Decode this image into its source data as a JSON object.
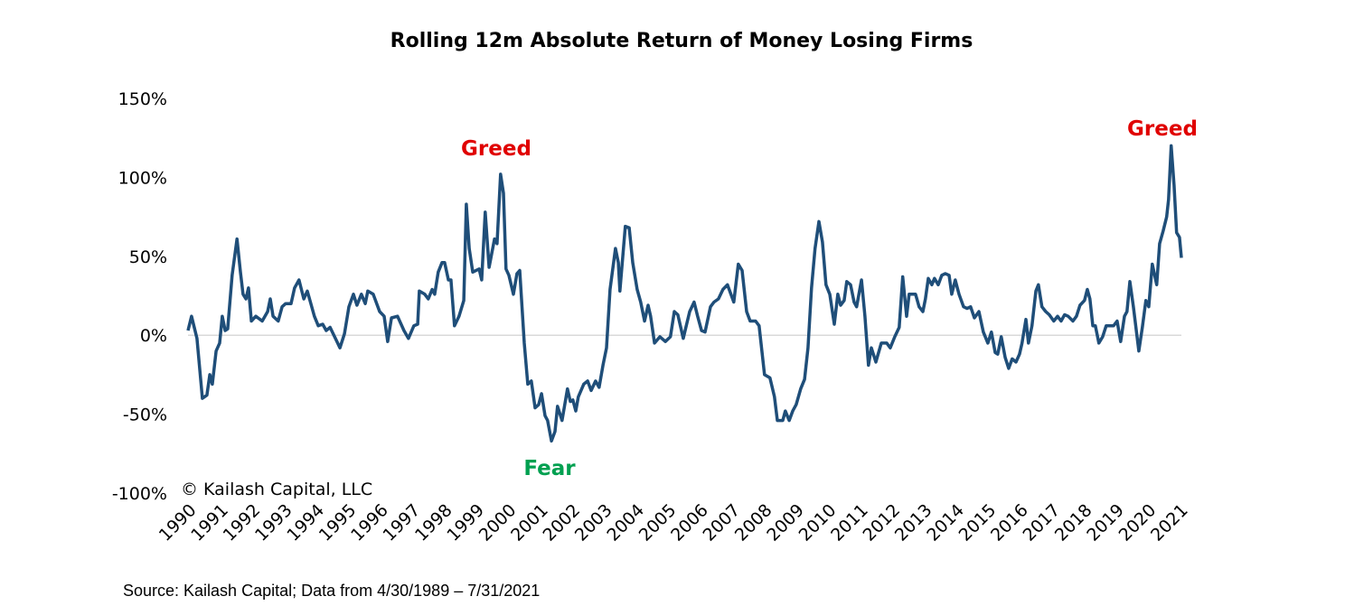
{
  "chart_data": {
    "type": "line",
    "title": "Rolling 12m Absolute Return of Money Losing Firms",
    "annotations": [
      "Greed",
      "Fear",
      "Greed",
      "© Kailash Capital, LLC"
    ],
    "source": "Source: Kailash Capital; Data from 4/30/1989 – 7/31/2021",
    "xlim": [
      1990,
      2021.05
    ],
    "xticks": [
      1990,
      1991,
      1992,
      1993,
      1994,
      1995,
      1996,
      1997,
      1998,
      1999,
      2000,
      2001,
      2002,
      2003,
      2004,
      2005,
      2006,
      2007,
      2008,
      2009,
      2010,
      2011,
      2012,
      2013,
      2014,
      2015,
      2016,
      2017,
      2018,
      2019,
      2020,
      2021
    ],
    "ylim": [
      -100,
      150
    ],
    "yticks": [
      {
        "value": -100,
        "label": "-100%"
      },
      {
        "value": -50,
        "label": "-50%"
      },
      {
        "value": 0,
        "label": "0%"
      },
      {
        "value": 50,
        "label": "50%"
      },
      {
        "value": 100,
        "label": "100%"
      },
      {
        "value": 150,
        "label": "150%"
      }
    ],
    "series": [
      {
        "color": "#1f4e79",
        "x": [
          1990.0,
          1990.11,
          1990.28,
          1990.45,
          1990.59,
          1990.68,
          1990.76,
          1990.88,
          1990.99,
          1991.07,
          1991.16,
          1991.24,
          1991.38,
          1991.53,
          1991.64,
          1991.72,
          1991.81,
          1991.89,
          1991.98,
          1992.12,
          1992.32,
          1992.49,
          1992.57,
          1992.66,
          1992.82,
          1992.94,
          1993.05,
          1993.22,
          1993.33,
          1993.47,
          1993.62,
          1993.73,
          1993.84,
          1993.95,
          1994.07,
          1994.21,
          1994.32,
          1994.44,
          1994.75,
          1994.89,
          1995.03,
          1995.17,
          1995.28,
          1995.42,
          1995.54,
          1995.62,
          1995.79,
          1995.99,
          1996.13,
          1996.24,
          1996.36,
          1996.55,
          1996.75,
          1996.89,
          1997.06,
          1997.18,
          1997.23,
          1997.4,
          1997.51,
          1997.63,
          1997.71,
          1997.82,
          1997.94,
          1998.02,
          1998.14,
          1998.22,
          1998.33,
          1998.47,
          1998.62,
          1998.7,
          1998.79,
          1998.9,
          1999.1,
          1999.18,
          1999.29,
          1999.41,
          1999.58,
          1999.66,
          1999.77,
          1999.86,
          1999.94,
          2000.03,
          2000.17,
          2000.28,
          2000.37,
          2000.51,
          2000.62,
          2000.73,
          2000.85,
          2000.96,
          2001.05,
          2001.16,
          2001.24,
          2001.36,
          2001.47,
          2001.55,
          2001.69,
          2001.86,
          2001.95,
          2002.03,
          2002.12,
          2002.2,
          2002.37,
          2002.49,
          2002.6,
          2002.74,
          2002.85,
          2002.97,
          2003.08,
          2003.19,
          2003.36,
          2003.45,
          2003.5,
          2003.67,
          2003.79,
          2003.9,
          2004.04,
          2004.15,
          2004.27,
          2004.38,
          2004.46,
          2004.58,
          2004.75,
          2004.92,
          2005.08,
          2005.2,
          2005.31,
          2005.48,
          2005.68,
          2005.82,
          2005.93,
          2006.05,
          2006.16,
          2006.33,
          2006.44,
          2006.58,
          2006.72,
          2006.86,
          2007.06,
          2007.2,
          2007.32,
          2007.46,
          2007.57,
          2007.74,
          2007.85,
          2008.02,
          2008.19,
          2008.33,
          2008.42,
          2008.59,
          2008.67,
          2008.79,
          2008.9,
          2009.01,
          2009.15,
          2009.27,
          2009.38,
          2009.49,
          2009.6,
          2009.72,
          2009.83,
          2009.94,
          2010.06,
          2010.2,
          2010.31,
          2010.4,
          2010.51,
          2010.59,
          2010.71,
          2010.82,
          2010.9,
          2011.05,
          2011.16,
          2011.27,
          2011.36,
          2011.5,
          2011.67,
          2011.84,
          2011.95,
          2012.09,
          2012.23,
          2012.34,
          2012.46,
          2012.54,
          2012.74,
          2012.85,
          2012.97,
          2013.05,
          2013.14,
          2013.25,
          2013.33,
          2013.45,
          2013.56,
          2013.67,
          2013.79,
          2013.87,
          2013.98,
          2014.1,
          2014.24,
          2014.35,
          2014.46,
          2014.58,
          2014.72,
          2014.86,
          2015.0,
          2015.11,
          2015.23,
          2015.31,
          2015.42,
          2015.54,
          2015.65,
          2015.76,
          2015.88,
          2015.99,
          2016.07,
          2016.19,
          2016.27,
          2016.38,
          2016.5,
          2016.58,
          2016.69,
          2016.81,
          2016.92,
          2017.06,
          2017.18,
          2017.29,
          2017.4,
          2017.51,
          2017.66,
          2017.77,
          2017.88,
          2018.02,
          2018.11,
          2018.19,
          2018.28,
          2018.36,
          2018.47,
          2018.59,
          2018.7,
          2018.93,
          2019.04,
          2019.15,
          2019.27,
          2019.35,
          2019.44,
          2019.55,
          2019.72,
          2019.83,
          2019.94,
          2020.03,
          2020.14,
          2020.28,
          2020.37,
          2020.48,
          2020.59,
          2020.65,
          2020.73,
          2020.82,
          2020.9,
          2020.99,
          2021.05
        ],
        "values": [
          3,
          12,
          -2,
          -40,
          -38,
          -25,
          -31,
          -10,
          -5,
          12,
          3,
          4,
          38,
          61,
          40,
          26,
          23,
          30,
          9,
          12,
          9,
          15,
          23,
          12,
          9,
          18,
          20,
          20,
          30,
          35,
          23,
          28,
          20,
          12,
          6,
          7,
          3,
          5,
          -8,
          1,
          18,
          26,
          19,
          26,
          20,
          28,
          26,
          15,
          12,
          -4,
          11,
          12,
          3,
          -2,
          6,
          7,
          28,
          26,
          23,
          29,
          26,
          40,
          46,
          46,
          35,
          35,
          6,
          12,
          22,
          83,
          55,
          40,
          42,
          35,
          78,
          43,
          61,
          58,
          102,
          90,
          42,
          38,
          26,
          39,
          41,
          -5,
          -31,
          -29,
          -46,
          -44,
          -37,
          -51,
          -54,
          -67,
          -61,
          -45,
          -54,
          -34,
          -42,
          -41,
          -48,
          -39,
          -31,
          -29,
          -35,
          -29,
          -33,
          -19,
          -8,
          29,
          55,
          46,
          28,
          69,
          68,
          46,
          29,
          21,
          9,
          19,
          12,
          -5,
          -1,
          -4,
          -1,
          15,
          13,
          -2,
          15,
          21,
          12,
          3,
          2,
          18,
          21,
          23,
          29,
          32,
          21,
          45,
          41,
          15,
          9,
          9,
          6,
          -25,
          -27,
          -39,
          -54,
          -54,
          -48,
          -54,
          -48,
          -44,
          -34,
          -28,
          -8,
          30,
          55,
          72,
          59,
          32,
          26,
          7,
          26,
          19,
          22,
          34,
          32,
          21,
          18,
          35,
          12,
          -19,
          -8,
          -17,
          -5,
          -5,
          -8,
          -1,
          5,
          37,
          12,
          26,
          26,
          18,
          15,
          23,
          36,
          32,
          36,
          32,
          38,
          39,
          38,
          26,
          35,
          26,
          18,
          17,
          18,
          11,
          15,
          2,
          -5,
          2,
          -11,
          -12,
          -1,
          -14,
          -21,
          -15,
          -17,
          -12,
          -5,
          10,
          -5,
          6,
          28,
          32,
          18,
          15,
          13,
          9,
          12,
          9,
          13,
          12,
          9,
          12,
          19,
          22,
          29,
          23,
          6,
          6,
          -5,
          -1,
          6,
          6,
          9,
          -4,
          12,
          15,
          34,
          18,
          -10,
          5,
          22,
          18,
          45,
          32,
          58,
          66,
          75,
          86,
          120,
          95,
          65,
          62,
          49
        ]
      }
    ]
  }
}
